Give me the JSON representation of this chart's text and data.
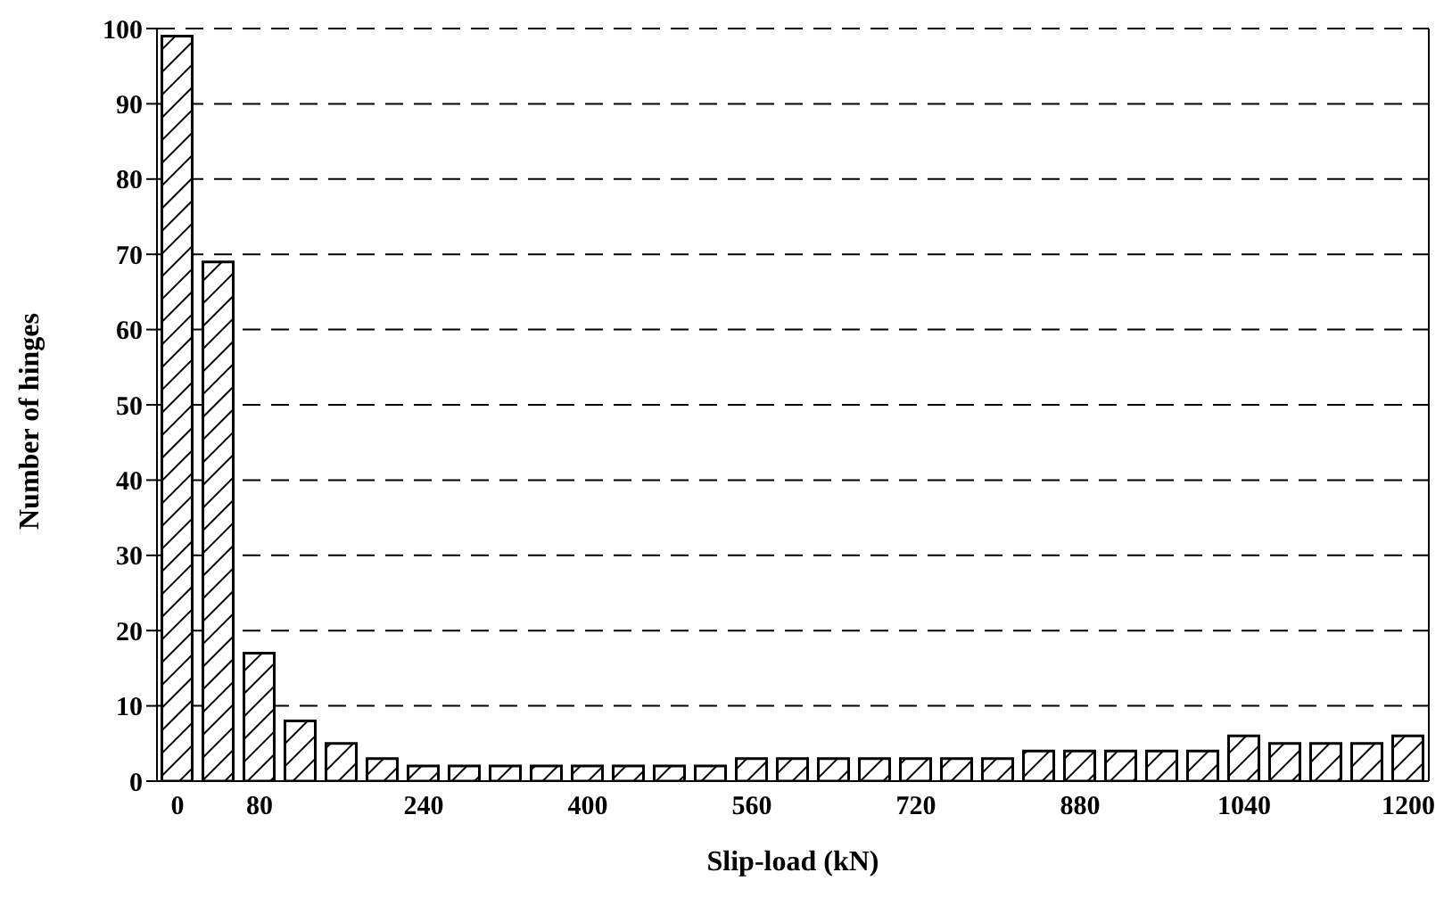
{
  "chart_data": {
    "type": "bar",
    "xlabel": "Slip-load (kN)",
    "ylabel": "Number of hinges",
    "categories": [
      "0",
      null,
      "80",
      null,
      null,
      null,
      "240",
      null,
      null,
      null,
      "400",
      null,
      null,
      null,
      "560",
      null,
      null,
      null,
      "720",
      null,
      null,
      null,
      "880",
      null,
      null,
      null,
      "1040",
      null,
      null,
      null,
      "1200"
    ],
    "values": [
      99,
      69,
      17,
      8,
      5,
      3,
      2,
      2,
      2,
      2,
      2,
      2,
      2,
      2,
      3,
      3,
      3,
      3,
      3,
      3,
      3,
      4,
      4,
      4,
      4,
      4,
      6,
      5,
      5,
      5,
      6
    ],
    "color": "#000000",
    "ylim": [
      0,
      100
    ],
    "yticks": [
      0,
      10,
      20,
      30,
      40,
      50,
      60,
      70,
      80,
      90,
      100
    ],
    "grid": "y",
    "line_style": "dashed"
  }
}
